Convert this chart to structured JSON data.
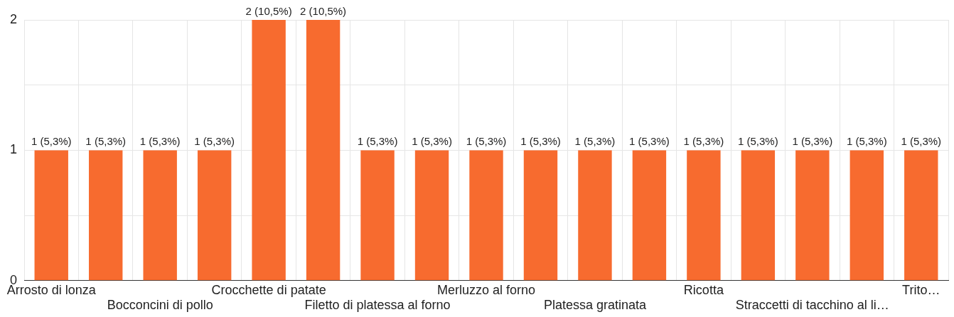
{
  "chart_data": {
    "type": "bar",
    "categories": [
      "Arrosto di lonza",
      null,
      "Bocconcini di pollo",
      null,
      "Crocchette di patate",
      null,
      "Filetto di platessa al forno",
      null,
      "Merluzzo al forno",
      null,
      "Platessa gratinata",
      null,
      "Ricotta",
      null,
      "Straccetti di tacchino al li…",
      null,
      "Trito…"
    ],
    "values": [
      1,
      1,
      1,
      1,
      2,
      2,
      1,
      1,
      1,
      1,
      1,
      1,
      1,
      1,
      1,
      1,
      1
    ],
    "value_labels": [
      "1 (5,3%)",
      "1 (5,3%)",
      "1 (5,3%)",
      "1 (5,3%)",
      "2 (10,5%)",
      "2 (10,5%)",
      "1 (5,3%)",
      "1 (5,3%)",
      "1 (5,3%)",
      "1 (5,3%)",
      "1 (5,3%)",
      "1 (5,3%)",
      "1 (5,3%)",
      "1 (5,3%)",
      "1 (5,3%)",
      "1 (5,3%)",
      "1 (5,3%)"
    ],
    "color": "#f76b2f",
    "ylim": [
      0,
      2
    ],
    "yticks": [
      0,
      {
        "value": 0.5,
        "label": null
      },
      1,
      {
        "value": 1.5,
        "label": null
      },
      2
    ],
    "grid": true
  }
}
